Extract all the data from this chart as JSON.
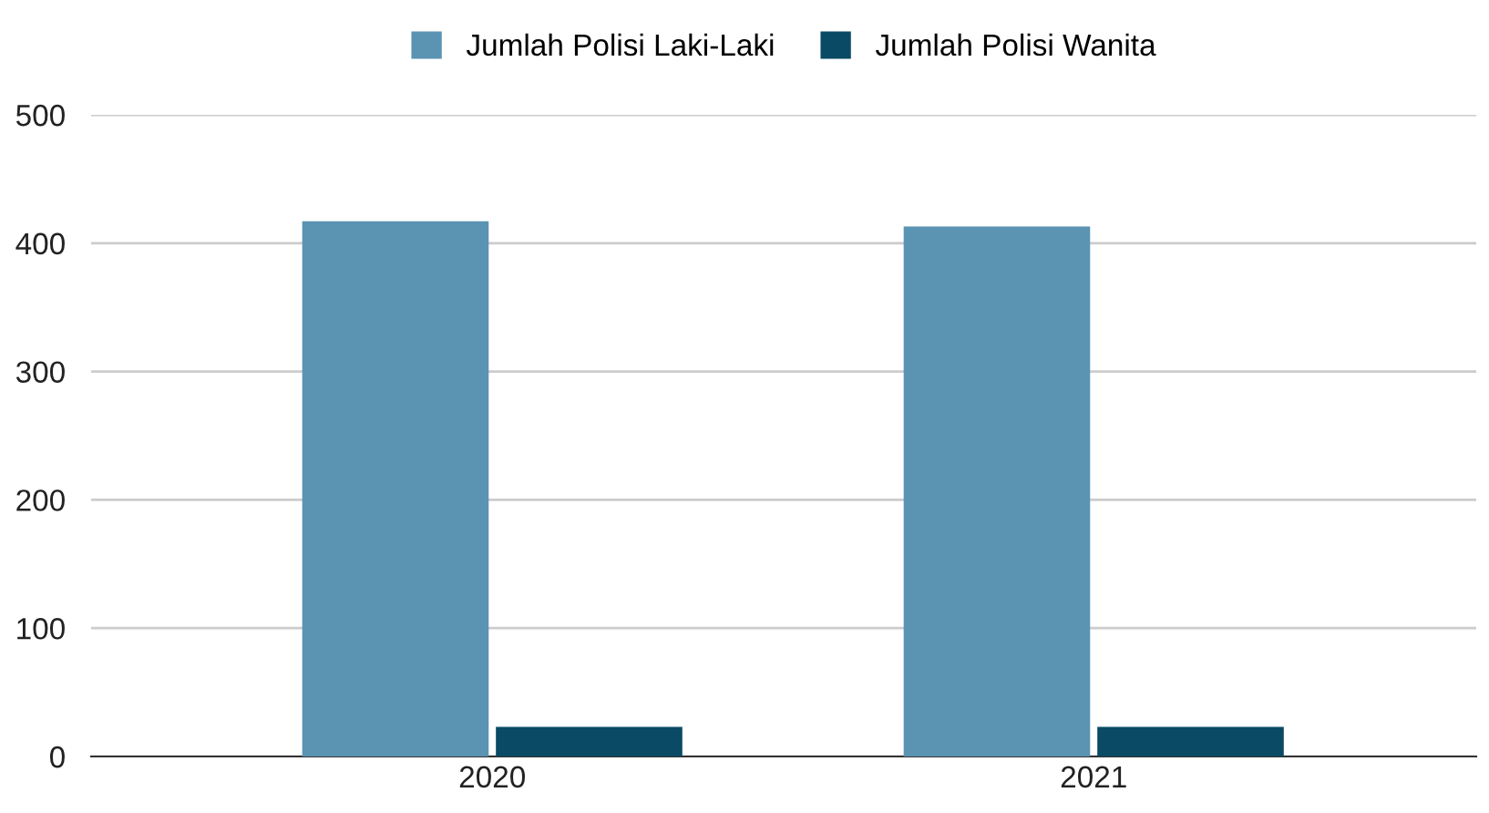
{
  "chart_data": {
    "type": "bar",
    "categories": [
      "2020",
      "2021"
    ],
    "series": [
      {
        "name": "Jumlah Polisi Laki-Laki",
        "color": "#5b93b3",
        "values": [
          417,
          413
        ]
      },
      {
        "name": "Jumlah Polisi Wanita",
        "color": "#0b4a64",
        "values": [
          23,
          23
        ]
      }
    ],
    "ylim": [
      0,
      500
    ],
    "yticks": [
      0,
      100,
      200,
      300,
      400,
      500
    ],
    "grid": "y",
    "legend": "top"
  }
}
